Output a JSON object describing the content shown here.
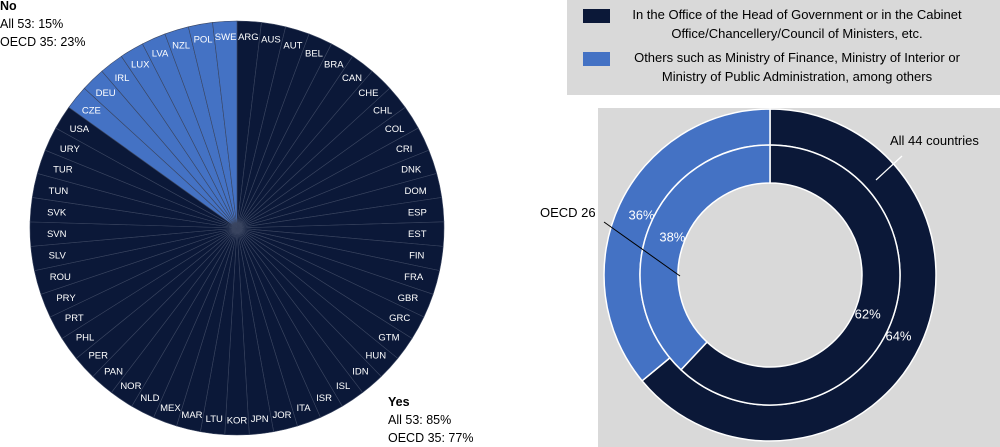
{
  "chart_data": [
    {
      "type": "pie",
      "categories": [
        "ARG",
        "AUS",
        "AUT",
        "BEL",
        "BRA",
        "CAN",
        "CHE",
        "CHL",
        "COL",
        "CRI",
        "DNK",
        "DOM",
        "ESP",
        "EST",
        "FIN",
        "FRA",
        "GBR",
        "GRC",
        "GTM",
        "HUN",
        "IDN",
        "ISL",
        "ISR",
        "ITA",
        "JOR",
        "JPN",
        "KOR",
        "LTU",
        "MAR",
        "MEX",
        "NLD",
        "NOR",
        "PAN",
        "PER",
        "PHL",
        "PRT",
        "PRY",
        "ROU",
        "SLV",
        "SVN",
        "SVK",
        "TUN",
        "TUR",
        "URY",
        "USA",
        "CZE",
        "DEU",
        "IRL",
        "LUX",
        "LVA",
        "NZL",
        "POL",
        "SWE"
      ],
      "values": [
        1,
        1,
        1,
        1,
        1,
        1,
        1,
        1,
        1,
        1,
        1,
        1,
        1,
        1,
        1,
        1,
        1,
        1,
        1,
        1,
        1,
        1,
        1,
        1,
        1,
        1,
        1,
        1,
        1,
        1,
        1,
        1,
        1,
        1,
        1,
        1,
        1,
        1,
        1,
        1,
        1,
        1,
        1,
        1,
        1,
        1,
        1,
        1,
        1,
        1,
        1,
        1,
        1
      ],
      "colors": [
        "#0b1838",
        "#0b1838",
        "#0b1838",
        "#0b1838",
        "#0b1838",
        "#0b1838",
        "#0b1838",
        "#0b1838",
        "#0b1838",
        "#0b1838",
        "#0b1838",
        "#0b1838",
        "#0b1838",
        "#0b1838",
        "#0b1838",
        "#0b1838",
        "#0b1838",
        "#0b1838",
        "#0b1838",
        "#0b1838",
        "#0b1838",
        "#0b1838",
        "#0b1838",
        "#0b1838",
        "#0b1838",
        "#0b1838",
        "#0b1838",
        "#0b1838",
        "#0b1838",
        "#0b1838",
        "#0b1838",
        "#0b1838",
        "#0b1838",
        "#0b1838",
        "#0b1838",
        "#0b1838",
        "#0b1838",
        "#0b1838",
        "#0b1838",
        "#0b1838",
        "#0b1838",
        "#0b1838",
        "#0b1838",
        "#0b1838",
        "#0b1838",
        "#4472c4",
        "#4472c4",
        "#4472c4",
        "#4472c4",
        "#4472c4",
        "#4472c4",
        "#4472c4",
        "#4472c4"
      ],
      "annotations": [
        {
          "label": "No",
          "lines": [
            "All 53: 15%",
            "OECD 35: 23%"
          ]
        },
        {
          "label": "Yes",
          "lines": [
            "All 53: 85%",
            "OECD 35: 77%"
          ]
        }
      ]
    },
    {
      "type": "donut",
      "categories": [
        "In the Office of the Head of Government or in the Cabinet Office/Chancellery/Council of Ministers, etc.",
        "Others such as Ministry of Finance, Ministry of Interior or Ministry of Public Administration, among others"
      ],
      "colors": [
        "#0b1838",
        "#4472c4"
      ],
      "series": [
        {
          "name": "All 44 countries",
          "values": [
            64,
            36
          ],
          "value_labels": [
            "64%",
            "36%"
          ]
        },
        {
          "name": "OECD 26",
          "values": [
            62,
            38
          ],
          "value_labels": [
            "62%",
            "38%"
          ]
        }
      ]
    }
  ]
}
